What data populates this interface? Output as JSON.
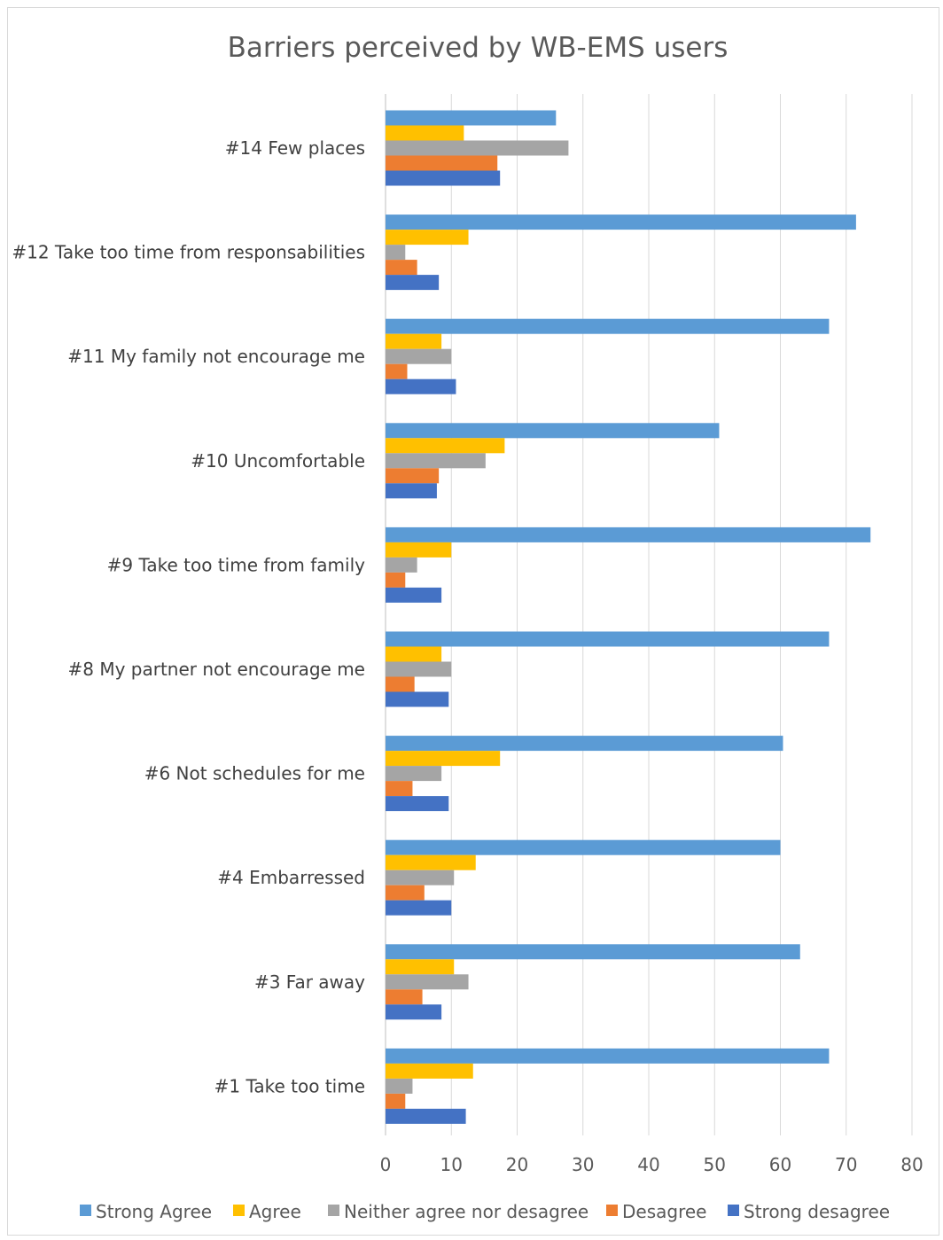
{
  "chart_data": {
    "type": "bar",
    "orientation": "horizontal",
    "title": "Barriers perceived by WB-EMS users",
    "xlabel": "",
    "ylabel": "",
    "xlim": [
      0,
      80
    ],
    "x_ticks": [
      0,
      10,
      20,
      30,
      40,
      50,
      60,
      70,
      80
    ],
    "grid": true,
    "legend_position": "bottom",
    "categories": [
      "#14 Few places",
      "#12 Take too time from responsabilities",
      "#11 My family not encourage me",
      "#10 Uncomfortable",
      "#9 Take too time from family",
      "#8 My partner not encourage me",
      "#6 Not schedules for me",
      "#4 Embarressed",
      "#3 Far away",
      "#1 Take too time"
    ],
    "series": [
      {
        "name": "Strong Agree",
        "color": "#5b9bd5",
        "values": [
          25.9,
          71.5,
          67.4,
          50.7,
          73.7,
          67.4,
          60.4,
          60.0,
          63.0,
          67.4
        ]
      },
      {
        "name": "Agree",
        "color": "#ffc000",
        "values": [
          11.9,
          12.6,
          8.5,
          18.1,
          10.0,
          8.5,
          17.4,
          13.7,
          10.4,
          13.3
        ]
      },
      {
        "name": "Neither agree nor desagree",
        "color": "#a5a5a5",
        "values": [
          27.8,
          3.0,
          10.0,
          15.2,
          4.8,
          10.0,
          8.5,
          10.4,
          12.6,
          4.1
        ]
      },
      {
        "name": "Desagree",
        "color": "#ed7d31",
        "values": [
          17.0,
          4.8,
          3.3,
          8.1,
          3.0,
          4.4,
          4.1,
          5.9,
          5.6,
          3.0
        ]
      },
      {
        "name": "Strong desagree",
        "color": "#4472c4",
        "values": [
          17.4,
          8.1,
          10.7,
          7.8,
          8.5,
          9.6,
          9.6,
          10.0,
          8.5,
          12.2
        ]
      }
    ]
  }
}
